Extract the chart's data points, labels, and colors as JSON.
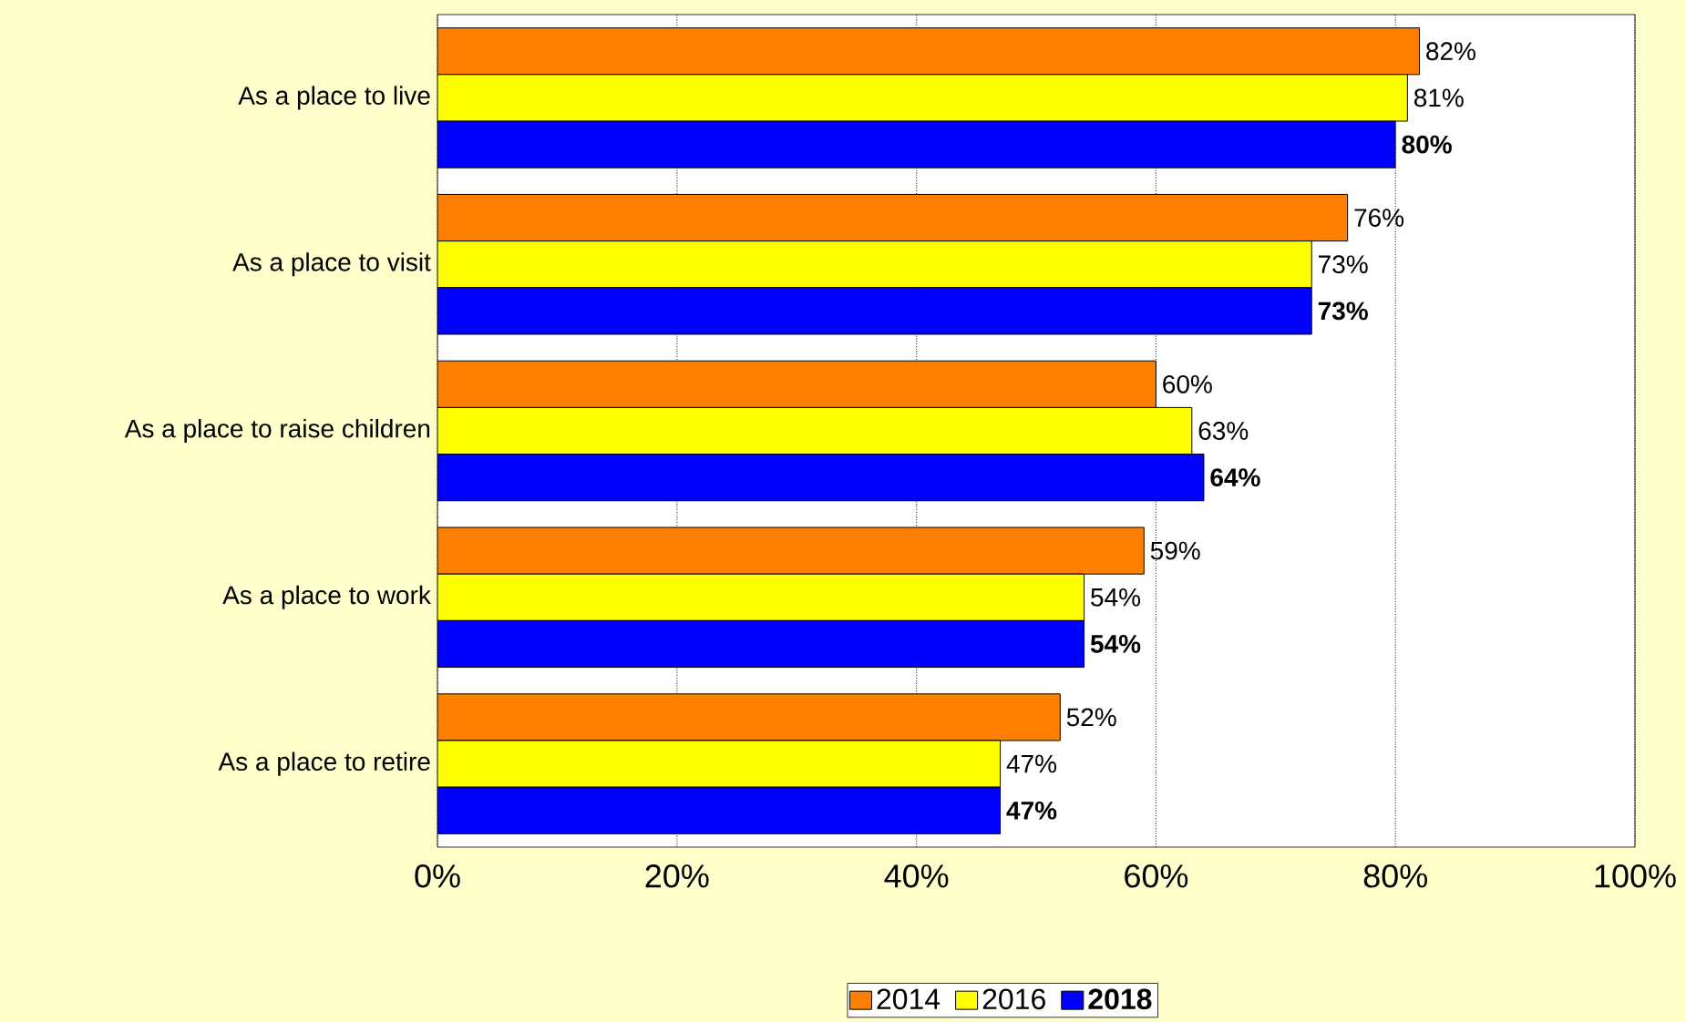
{
  "chart_data": {
    "type": "bar",
    "orientation": "horizontal",
    "categories": [
      "As a place to live",
      "As a place to visit",
      "As a place to raise children",
      "As a place to work",
      "As a place to retire"
    ],
    "series": [
      {
        "name": "2014",
        "color": "#ff8000",
        "values": [
          82,
          76,
          60,
          59,
          52
        ],
        "value_labels": [
          "82%",
          "76%",
          "60%",
          "59%",
          "52%"
        ]
      },
      {
        "name": "2016",
        "color": "#ffff00",
        "values": [
          81,
          73,
          63,
          54,
          47
        ],
        "value_labels": [
          "81%",
          "73%",
          "63%",
          "54%",
          "47%"
        ]
      },
      {
        "name": "2018",
        "color": "#0000ff",
        "values": [
          80,
          73,
          64,
          54,
          47
        ],
        "value_labels": [
          "80%",
          "73%",
          "64%",
          "54%",
          "47%"
        ]
      }
    ],
    "xlim": [
      0,
      100
    ],
    "xticks": [
      {
        "value": 0,
        "label": "0%"
      },
      {
        "value": 20,
        "label": "20%"
      },
      {
        "value": 40,
        "label": "40%"
      },
      {
        "value": 60,
        "label": "60%"
      },
      {
        "value": 80,
        "label": "80%"
      },
      {
        "value": 100,
        "label": "100%"
      }
    ],
    "grid": "x",
    "legend": "bottom"
  }
}
